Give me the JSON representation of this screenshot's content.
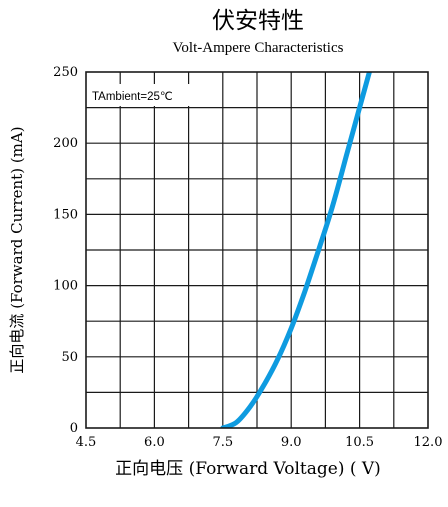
{
  "chart_data": {
    "type": "line",
    "title": "伏安特性",
    "subtitle": "Volt-Ampere Characteristics",
    "xlabel": "正向电压 (Forward Voltage) ( V)",
    "ylabel": "正向电流 (Forward Current) (mA)",
    "annotation": "TAmbient=25℃",
    "x_ticks": [
      "4.5",
      "6.0",
      "7.5",
      "9.0",
      "10.5",
      "12.0"
    ],
    "y_ticks": [
      "0",
      "50",
      "100",
      "150",
      "200",
      "250"
    ],
    "xlim": [
      4.5,
      12.0
    ],
    "ylim": [
      0,
      250
    ],
    "grid": true,
    "line_color": "#0e9be0",
    "series": [
      {
        "x": [
          7.5,
          7.8,
          8.1,
          8.4,
          8.7,
          9.0,
          9.3,
          9.6,
          9.9,
          10.2,
          10.5,
          10.8
        ],
        "values": [
          0,
          4,
          15,
          30,
          48,
          70,
          96,
          125,
          155,
          190,
          225,
          260
        ]
      }
    ]
  }
}
